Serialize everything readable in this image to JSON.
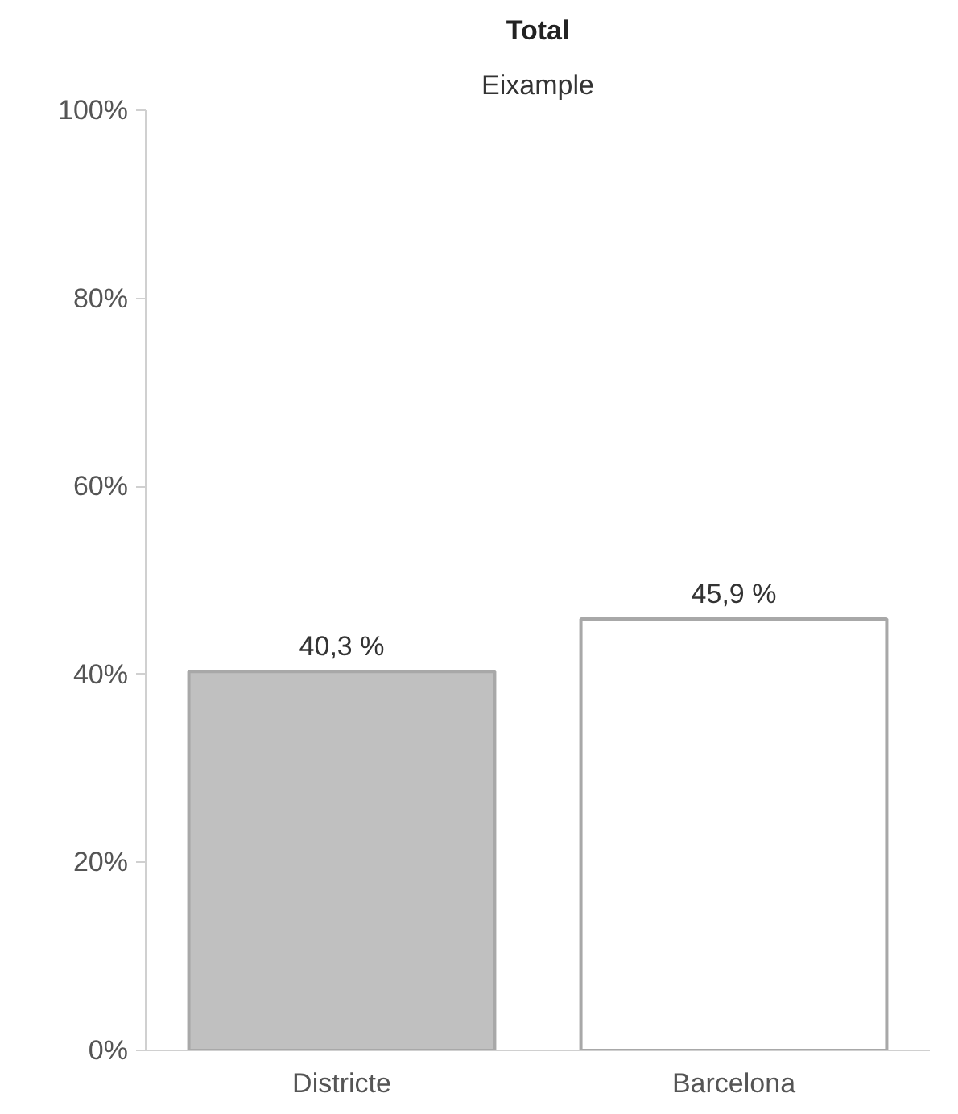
{
  "chart_data": {
    "type": "bar",
    "title": "Total",
    "subtitle": "Eixample",
    "categories": [
      "Districte",
      "Barcelona"
    ],
    "values": [
      40.3,
      45.9
    ],
    "value_labels": [
      "40,3 %",
      "45,9 %"
    ],
    "colors": [
      "#c0c0c0",
      "#ffffff"
    ],
    "ylim": [
      0,
      100
    ],
    "yticks": [
      {
        "value": 0,
        "label": "0%"
      },
      {
        "value": 20,
        "label": "20%"
      },
      {
        "value": 40,
        "label": "40%"
      },
      {
        "value": 60,
        "label": "60%"
      },
      {
        "value": 80,
        "label": "80%"
      },
      {
        "value": 100,
        "label": "100%"
      }
    ],
    "grid": false
  }
}
